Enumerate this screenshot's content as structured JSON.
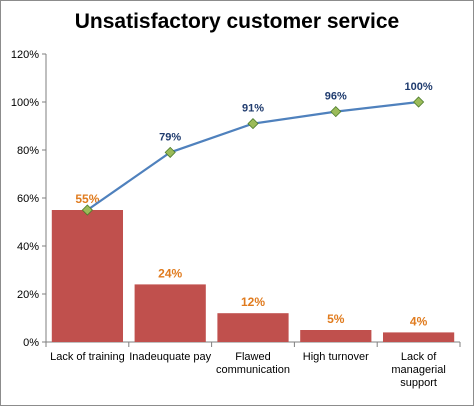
{
  "chart_data": {
    "type": "bar",
    "title": "Unsatisfactory customer service",
    "categories": [
      "Lack of training",
      "Inadeuquate pay",
      "Flawed communication",
      "High turnover",
      "Lack of managerial support"
    ],
    "category_lines": [
      [
        "Lack of training"
      ],
      [
        "Inadeuquate pay"
      ],
      [
        "Flawed",
        "communication"
      ],
      [
        "High turnover"
      ],
      [
        "Lack of",
        "managerial",
        "support"
      ]
    ],
    "series": [
      {
        "type": "bar",
        "values": [
          55,
          24,
          12,
          5,
          4
        ],
        "labels": [
          "55%",
          "24%",
          "12%",
          "5%",
          "4%"
        ],
        "color": "#c0504d"
      },
      {
        "type": "line",
        "values": [
          55,
          79,
          91,
          96,
          100
        ],
        "labels": [
          "",
          "79%",
          "91%",
          "96%",
          "100%"
        ],
        "color": "#4f81bd",
        "marker_color": "#9bbb59"
      }
    ],
    "ylim": [
      0,
      120
    ],
    "yticks": [
      0,
      20,
      40,
      60,
      80,
      100,
      120
    ],
    "ytick_labels": [
      "0%",
      "20%",
      "40%",
      "60%",
      "80%",
      "100%",
      "120%"
    ],
    "grid": false,
    "legend": "none"
  }
}
